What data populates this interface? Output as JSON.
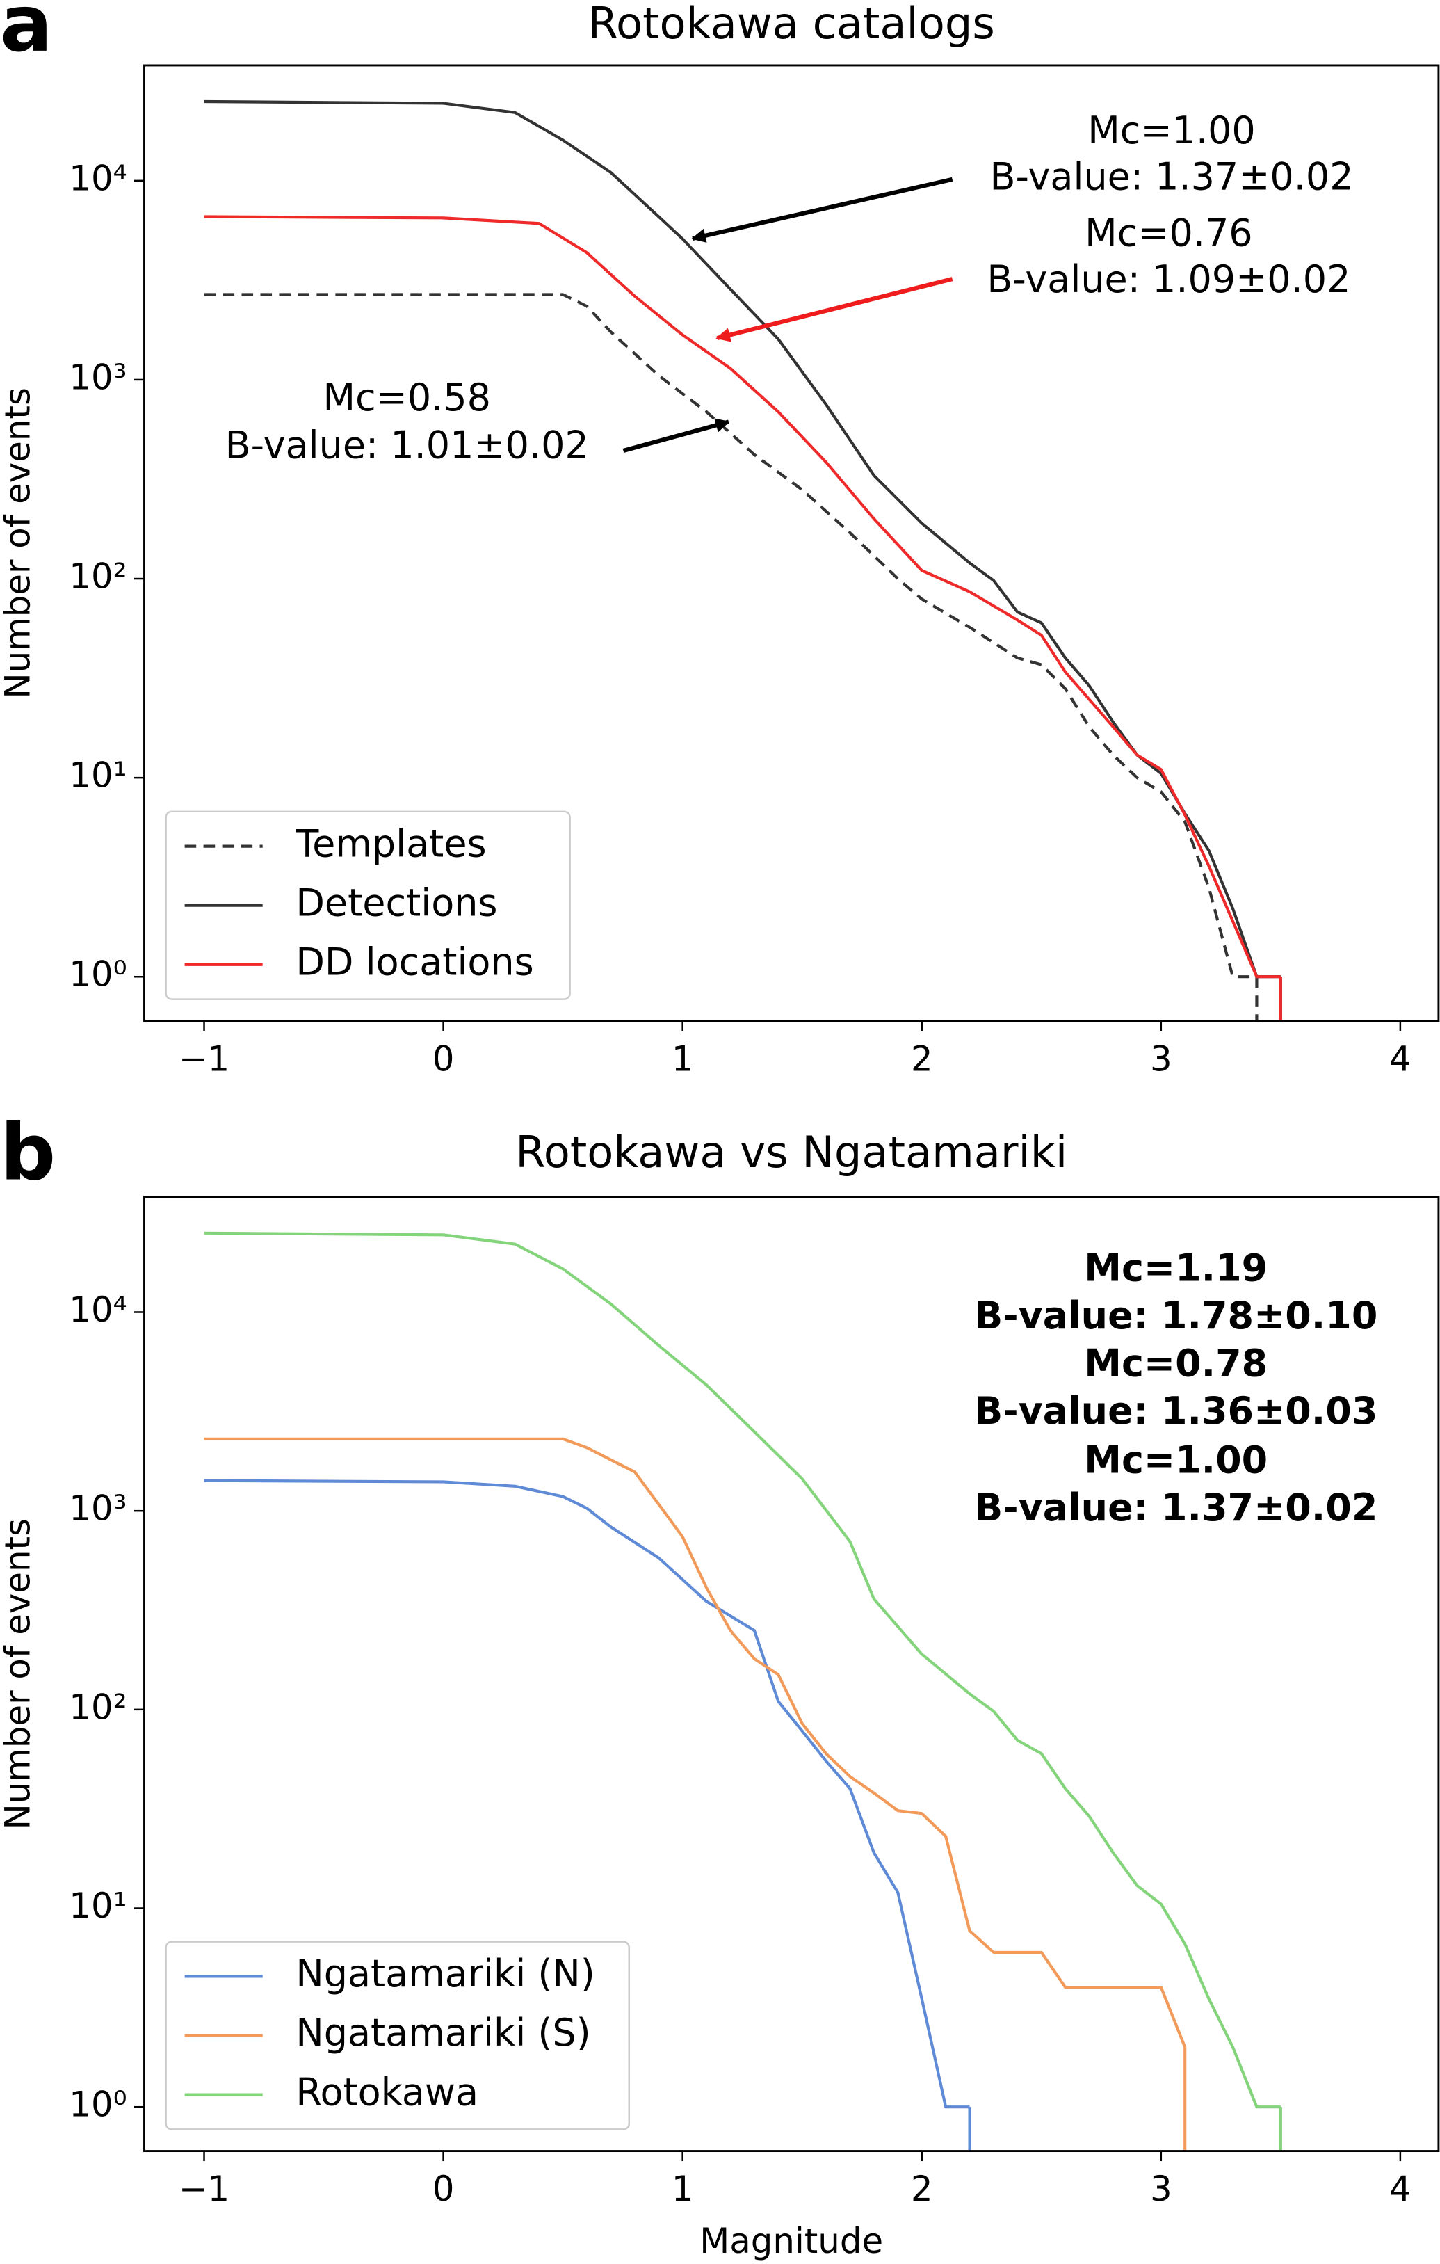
{
  "chart_data": [
    {
      "type": "line",
      "panel_label": "a",
      "title": "Rotokawa catalogs",
      "ylabel": "Number of events",
      "log_y": true,
      "xlim": [
        -1.25,
        4.16
      ],
      "ylim": [
        0.6,
        38000
      ],
      "xticks": [
        {
          "value": -1,
          "label": "−1"
        },
        0,
        1,
        2,
        3,
        4
      ],
      "yticks": [
        {
          "value": 1,
          "label": "10⁰"
        },
        {
          "value": 10,
          "label": "10¹"
        },
        {
          "value": 100,
          "label": "10²"
        },
        {
          "value": 1000,
          "label": "10³"
        },
        {
          "value": 10000,
          "label": "10⁴"
        }
      ],
      "legend": "lower left",
      "series": [
        {
          "name": "Templates",
          "color": "#333333",
          "linestyle": "dashed",
          "x": [
            -1,
            0.5,
            0.6,
            0.7,
            0.9,
            1.1,
            1.3,
            1.5,
            1.7,
            1.9,
            2.0,
            2.2,
            2.4,
            2.5,
            2.6,
            2.7,
            2.8,
            2.9,
            3.0,
            3.1,
            3.2,
            3.3,
            3.4
          ],
          "values": [
            2680,
            2680,
            2340,
            1740,
            1050,
            690,
            420,
            280,
            170,
            100,
            79,
            57,
            40,
            37,
            28,
            18,
            13,
            10,
            8.5,
            6,
            2.8,
            1,
            1
          ]
        },
        {
          "name": "Detections",
          "color": "#333333",
          "linestyle": "solid",
          "x": [
            -1,
            0,
            0.3,
            0.5,
            0.7,
            0.9,
            1.0,
            1.2,
            1.4,
            1.6,
            1.8,
            2.0,
            2.2,
            2.3,
            2.4,
            2.5,
            2.6,
            2.7,
            2.8,
            2.9,
            3.0,
            3.1,
            3.2,
            3.3,
            3.4,
            3.5
          ],
          "values": [
            25000,
            24500,
            22000,
            16000,
            11000,
            6600,
            5100,
            2850,
            1600,
            750,
            330,
            190,
            120,
            98,
            68,
            60,
            40,
            29,
            19,
            13,
            10.5,
            6.6,
            4.3,
            2.2,
            1,
            1
          ]
        },
        {
          "name": "DD locations",
          "color": "#ee2a2a",
          "linestyle": "solid",
          "x": [
            -1,
            0,
            0.4,
            0.6,
            0.8,
            1.0,
            1.2,
            1.4,
            1.6,
            1.8,
            2.0,
            2.2,
            2.4,
            2.5,
            2.6,
            2.8,
            2.9,
            3.0,
            3.1,
            3.2,
            3.3,
            3.4,
            3.5
          ],
          "values": [
            6600,
            6500,
            6100,
            4350,
            2630,
            1680,
            1140,
            690,
            385,
            200,
            110,
            86,
            62,
            52,
            34,
            18,
            13,
            11,
            6.5,
            3.6,
            1.9,
            1,
            1
          ]
        }
      ],
      "annotations": [
        {
          "lines": [
            "Mc=1.00",
            "B-value: 1.37±0.02"
          ],
          "color": "#000000"
        },
        {
          "lines": [
            "Mc=0.76",
            "B-value: 1.09±0.02"
          ],
          "color": "#ee1c1c"
        },
        {
          "lines": [
            "Mc=0.58",
            "B-value: 1.01±0.02"
          ],
          "color": "#000000"
        }
      ]
    },
    {
      "type": "line",
      "panel_label": "b",
      "title": "Rotokawa vs Ngatamariki",
      "ylabel": "Number of events",
      "xlabel": "Magnitude",
      "log_y": true,
      "xlim": [
        -1.25,
        4.16
      ],
      "ylim": [
        0.6,
        38000
      ],
      "xticks": [
        {
          "value": -1,
          "label": "−1"
        },
        0,
        1,
        2,
        3,
        4
      ],
      "yticks": [
        {
          "value": 1,
          "label": "10⁰"
        },
        {
          "value": 10,
          "label": "10¹"
        },
        {
          "value": 100,
          "label": "10²"
        },
        {
          "value": 1000,
          "label": "10³"
        },
        {
          "value": 10000,
          "label": "10⁴"
        }
      ],
      "legend": "lower left",
      "annotation_weight": "bold",
      "series": [
        {
          "name": "Ngatamariki (N)",
          "color": "#5f8ad6",
          "linestyle": "solid",
          "x": [
            -1,
            0,
            0.3,
            0.5,
            0.6,
            0.7,
            0.9,
            1.1,
            1.3,
            1.4,
            1.5,
            1.6,
            1.7,
            1.8,
            1.9,
            2.0,
            2.1,
            2.2
          ],
          "values": [
            1420,
            1400,
            1330,
            1180,
            1030,
            830,
            580,
            350,
            250,
            110,
            78,
            55,
            40,
            19,
            12,
            3.5,
            1,
            1
          ]
        },
        {
          "name": "Ngatamariki (S)",
          "color": "#f29a5a",
          "linestyle": "solid",
          "x": [
            -1,
            0.5,
            0.6,
            0.8,
            0.9,
            1.0,
            1.1,
            1.2,
            1.3,
            1.4,
            1.5,
            1.6,
            1.7,
            1.8,
            1.9,
            2.0,
            2.1,
            2.2,
            2.3,
            2.4,
            2.5,
            2.6,
            2.7,
            2.8,
            2.9,
            3.0,
            3.1
          ],
          "values": [
            2300,
            2300,
            2080,
            1570,
            1080,
            740,
            410,
            250,
            180,
            150,
            85,
            60,
            46,
            38,
            31,
            30,
            23,
            7.7,
            6,
            6,
            6,
            4,
            4,
            4,
            4,
            4,
            2
          ]
        },
        {
          "name": "Rotokawa",
          "color": "#84d47c",
          "linestyle": "solid",
          "x": [
            -1,
            0,
            0.3,
            0.5,
            0.7,
            0.9,
            1.1,
            1.3,
            1.5,
            1.7,
            1.8,
            2.0,
            2.2,
            2.3,
            2.4,
            2.5,
            2.6,
            2.7,
            2.8,
            2.9,
            3.0,
            3.1,
            3.2,
            3.3,
            3.4,
            3.5
          ],
          "values": [
            25000,
            24500,
            22000,
            16500,
            11000,
            6800,
            4300,
            2500,
            1450,
            700,
            360,
            190,
            120,
            98,
            70,
            60,
            40,
            29,
            19,
            13,
            10.5,
            6.6,
            3.5,
            2,
            1,
            1
          ]
        }
      ],
      "annotations": [
        {
          "lines": [
            "Mc=1.19",
            "B-value: 1.78±0.10"
          ],
          "color": "#4a72c8"
        },
        {
          "lines": [
            "Mc=0.78",
            "B-value: 1.36±0.03"
          ],
          "color": "#ee8a4a"
        },
        {
          "lines": [
            "Mc=1.00",
            "B-value: 1.37±0.02"
          ],
          "color": "#66cc55"
        }
      ]
    }
  ]
}
